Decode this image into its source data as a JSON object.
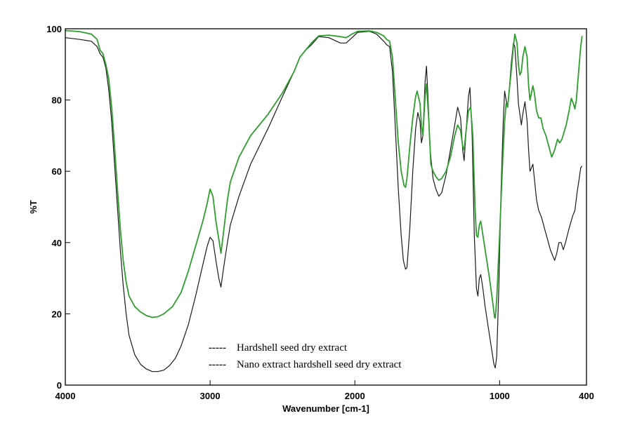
{
  "chart_data": {
    "type": "line",
    "title": "",
    "xlabel": "Wavenumber [cm-1]",
    "ylabel": "%T",
    "xlim": [
      4000,
      400
    ],
    "ylim": [
      0,
      100
    ],
    "x_reversed": true,
    "grid": false,
    "legend_placement": "bottom-center",
    "x_ticks": [
      4000,
      3000,
      2000,
      1000,
      400
    ],
    "y_ticks": [
      0,
      20,
      40,
      60,
      80,
      100
    ],
    "series": [
      {
        "name": "Hardshell seed dry extract",
        "color": "#2e9e2e",
        "legend_marker": "-----",
        "points": [
          [
            4000,
            99.5
          ],
          [
            3900,
            99.2
          ],
          [
            3820,
            98.5
          ],
          [
            3780,
            97
          ],
          [
            3760,
            94
          ],
          [
            3740,
            93
          ],
          [
            3720,
            90
          ],
          [
            3700,
            86
          ],
          [
            3680,
            78
          ],
          [
            3660,
            67
          ],
          [
            3640,
            55
          ],
          [
            3620,
            44
          ],
          [
            3600,
            35
          ],
          [
            3580,
            29
          ],
          [
            3560,
            25
          ],
          [
            3520,
            22
          ],
          [
            3480,
            20.5
          ],
          [
            3440,
            19.5
          ],
          [
            3400,
            19
          ],
          [
            3360,
            19.2
          ],
          [
            3320,
            20
          ],
          [
            3260,
            22
          ],
          [
            3200,
            26
          ],
          [
            3150,
            32
          ],
          [
            3100,
            39
          ],
          [
            3050,
            46
          ],
          [
            3020,
            51
          ],
          [
            3000,
            55
          ],
          [
            2980,
            53
          ],
          [
            2960,
            46
          ],
          [
            2940,
            41
          ],
          [
            2925,
            37
          ],
          [
            2910,
            42
          ],
          [
            2880,
            52
          ],
          [
            2860,
            57
          ],
          [
            2800,
            64
          ],
          [
            2720,
            70
          ],
          [
            2600,
            76
          ],
          [
            2500,
            82
          ],
          [
            2420,
            88
          ],
          [
            2380,
            92
          ],
          [
            2340,
            94
          ],
          [
            2300,
            96
          ],
          [
            2250,
            98
          ],
          [
            2180,
            98.2
          ],
          [
            2100,
            97.8
          ],
          [
            2060,
            97.5
          ],
          [
            2020,
            98.5
          ],
          [
            1980,
            99.3
          ],
          [
            1900,
            99.4
          ],
          [
            1850,
            99
          ],
          [
            1800,
            98
          ],
          [
            1780,
            97
          ],
          [
            1760,
            96.5
          ],
          [
            1740,
            92
          ],
          [
            1720,
            80
          ],
          [
            1700,
            68
          ],
          [
            1680,
            60
          ],
          [
            1660,
            56
          ],
          [
            1650,
            55.5
          ],
          [
            1640,
            58
          ],
          [
            1620,
            67
          ],
          [
            1600,
            75
          ],
          [
            1580,
            81
          ],
          [
            1570,
            82.5
          ],
          [
            1550,
            79
          ],
          [
            1540,
            73
          ],
          [
            1530,
            70
          ],
          [
            1515,
            81
          ],
          [
            1505,
            84.5
          ],
          [
            1490,
            75
          ],
          [
            1475,
            62
          ],
          [
            1460,
            60
          ],
          [
            1440,
            58.5
          ],
          [
            1420,
            57.5
          ],
          [
            1400,
            58
          ],
          [
            1370,
            60
          ],
          [
            1340,
            64
          ],
          [
            1310,
            70
          ],
          [
            1290,
            73
          ],
          [
            1270,
            71.5
          ],
          [
            1255,
            67
          ],
          [
            1245,
            66
          ],
          [
            1230,
            72
          ],
          [
            1215,
            77
          ],
          [
            1200,
            78
          ],
          [
            1185,
            70
          ],
          [
            1170,
            50
          ],
          [
            1160,
            42
          ],
          [
            1150,
            41.5
          ],
          [
            1140,
            45
          ],
          [
            1130,
            46
          ],
          [
            1115,
            42
          ],
          [
            1100,
            38
          ],
          [
            1085,
            34
          ],
          [
            1070,
            30
          ],
          [
            1050,
            24
          ],
          [
            1035,
            19
          ],
          [
            1030,
            18.8
          ],
          [
            1020,
            24
          ],
          [
            1000,
            42
          ],
          [
            980,
            62
          ],
          [
            965,
            74
          ],
          [
            955,
            79
          ],
          [
            945,
            78
          ],
          [
            935,
            82
          ],
          [
            920,
            88
          ],
          [
            905,
            95
          ],
          [
            895,
            98.5
          ],
          [
            880,
            96
          ],
          [
            870,
            90
          ],
          [
            860,
            87
          ],
          [
            850,
            88
          ],
          [
            840,
            92
          ],
          [
            825,
            95
          ],
          [
            810,
            92
          ],
          [
            800,
            84
          ],
          [
            790,
            80
          ],
          [
            780,
            82
          ],
          [
            770,
            84
          ],
          [
            760,
            82
          ],
          [
            745,
            77
          ],
          [
            730,
            75
          ],
          [
            715,
            75
          ],
          [
            700,
            72
          ],
          [
            680,
            70
          ],
          [
            660,
            67
          ],
          [
            640,
            64
          ],
          [
            620,
            66
          ],
          [
            600,
            69
          ],
          [
            585,
            68
          ],
          [
            570,
            69
          ],
          [
            555,
            71
          ],
          [
            540,
            73
          ],
          [
            520,
            77
          ],
          [
            505,
            80.5
          ],
          [
            490,
            79
          ],
          [
            480,
            77.5
          ],
          [
            470,
            80
          ],
          [
            460,
            85
          ],
          [
            450,
            90
          ],
          [
            440,
            95
          ],
          [
            430,
            98
          ]
        ]
      },
      {
        "name": "Nano extract hardshell seed dry extract",
        "color": "#1a1a1a",
        "legend_marker": "-----",
        "points": [
          [
            4000,
            97.5
          ],
          [
            3900,
            97
          ],
          [
            3820,
            96.5
          ],
          [
            3780,
            95
          ],
          [
            3760,
            93
          ],
          [
            3740,
            92
          ],
          [
            3720,
            89
          ],
          [
            3700,
            83
          ],
          [
            3680,
            74
          ],
          [
            3660,
            62
          ],
          [
            3640,
            50
          ],
          [
            3620,
            38
          ],
          [
            3600,
            28
          ],
          [
            3580,
            20
          ],
          [
            3560,
            14
          ],
          [
            3520,
            8.5
          ],
          [
            3480,
            5.8
          ],
          [
            3440,
            4.5
          ],
          [
            3400,
            3.8
          ],
          [
            3360,
            3.8
          ],
          [
            3320,
            4.2
          ],
          [
            3280,
            5.5
          ],
          [
            3240,
            7.5
          ],
          [
            3200,
            11
          ],
          [
            3150,
            17
          ],
          [
            3100,
            25
          ],
          [
            3060,
            32
          ],
          [
            3020,
            39
          ],
          [
            3000,
            41.5
          ],
          [
            2980,
            40.5
          ],
          [
            2960,
            35
          ],
          [
            2940,
            30
          ],
          [
            2925,
            27.5
          ],
          [
            2910,
            32
          ],
          [
            2880,
            40
          ],
          [
            2860,
            45
          ],
          [
            2800,
            53
          ],
          [
            2720,
            62
          ],
          [
            2600,
            72
          ],
          [
            2500,
            81
          ],
          [
            2420,
            88
          ],
          [
            2380,
            92
          ],
          [
            2340,
            94
          ],
          [
            2300,
            95.5
          ],
          [
            2250,
            97.8
          ],
          [
            2180,
            97.5
          ],
          [
            2100,
            96
          ],
          [
            2060,
            96
          ],
          [
            2020,
            97.5
          ],
          [
            1980,
            99
          ],
          [
            1900,
            99.3
          ],
          [
            1850,
            98.5
          ],
          [
            1800,
            96.5
          ],
          [
            1780,
            95.5
          ],
          [
            1760,
            95
          ],
          [
            1740,
            88
          ],
          [
            1720,
            72
          ],
          [
            1700,
            55
          ],
          [
            1680,
            42
          ],
          [
            1665,
            35
          ],
          [
            1650,
            32.5
          ],
          [
            1640,
            33
          ],
          [
            1620,
            44
          ],
          [
            1600,
            60
          ],
          [
            1580,
            72
          ],
          [
            1565,
            76.5
          ],
          [
            1550,
            74
          ],
          [
            1540,
            68
          ],
          [
            1530,
            70
          ],
          [
            1515,
            85
          ],
          [
            1505,
            89.5
          ],
          [
            1495,
            81
          ],
          [
            1480,
            66
          ],
          [
            1460,
            58
          ],
          [
            1440,
            55
          ],
          [
            1420,
            53
          ],
          [
            1400,
            54
          ],
          [
            1370,
            59
          ],
          [
            1340,
            66
          ],
          [
            1310,
            73
          ],
          [
            1290,
            78
          ],
          [
            1270,
            75
          ],
          [
            1255,
            66
          ],
          [
            1245,
            63
          ],
          [
            1230,
            72
          ],
          [
            1215,
            81
          ],
          [
            1205,
            83.5
          ],
          [
            1190,
            70
          ],
          [
            1175,
            42
          ],
          [
            1160,
            27
          ],
          [
            1150,
            25
          ],
          [
            1140,
            30
          ],
          [
            1130,
            31
          ],
          [
            1115,
            27
          ],
          [
            1100,
            22
          ],
          [
            1085,
            18
          ],
          [
            1070,
            14
          ],
          [
            1055,
            10
          ],
          [
            1040,
            6
          ],
          [
            1030,
            4.8
          ],
          [
            1020,
            8
          ],
          [
            1005,
            28
          ],
          [
            990,
            55
          ],
          [
            975,
            74
          ],
          [
            965,
            82.5
          ],
          [
            955,
            80
          ],
          [
            945,
            78
          ],
          [
            935,
            82
          ],
          [
            920,
            90
          ],
          [
            905,
            96
          ],
          [
            895,
            95
          ],
          [
            880,
            86
          ],
          [
            870,
            79
          ],
          [
            860,
            76
          ],
          [
            850,
            73
          ],
          [
            840,
            76
          ],
          [
            825,
            79.5
          ],
          [
            810,
            74
          ],
          [
            800,
            66
          ],
          [
            790,
            60
          ],
          [
            780,
            61
          ],
          [
            770,
            62
          ],
          [
            760,
            58
          ],
          [
            745,
            52
          ],
          [
            730,
            49
          ],
          [
            710,
            47
          ],
          [
            690,
            44
          ],
          [
            670,
            41
          ],
          [
            650,
            38
          ],
          [
            630,
            36
          ],
          [
            620,
            35
          ],
          [
            605,
            37
          ],
          [
            590,
            40
          ],
          [
            575,
            40
          ],
          [
            560,
            38
          ],
          [
            545,
            40
          ],
          [
            520,
            44
          ],
          [
            495,
            47.5
          ],
          [
            480,
            49
          ],
          [
            465,
            54
          ],
          [
            450,
            58
          ],
          [
            440,
            61
          ],
          [
            430,
            61.5
          ]
        ]
      }
    ]
  }
}
